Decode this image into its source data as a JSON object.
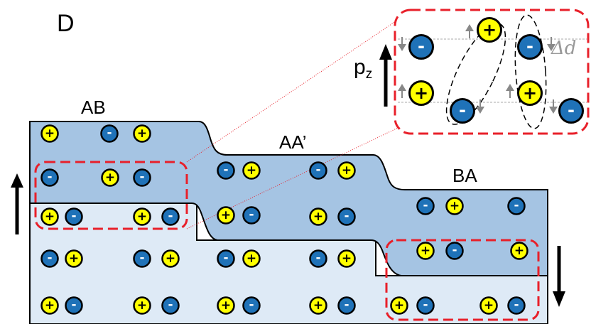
{
  "panel_label": "D",
  "regions": [
    {
      "id": "AB",
      "label": "AB"
    },
    {
      "id": "AA",
      "label": "AA’"
    },
    {
      "id": "BA",
      "label": "BA"
    }
  ],
  "inset": {
    "polarization_symbol": "p",
    "polarization_subscript": "z",
    "displacement_label": "Δd"
  },
  "ion_symbols": {
    "cation": "+",
    "anion": "-"
  },
  "colors": {
    "cation_fill": "#ffff00",
    "anion_fill": "#1f72b8",
    "upper_layer_fill": "#a5c4e3",
    "lower_layer_fill": "#deeaf6",
    "highlight_box": "#e8202a",
    "guide_line": "#aaaaaa"
  },
  "polarization_arrows": {
    "left": "up",
    "right": "down"
  }
}
